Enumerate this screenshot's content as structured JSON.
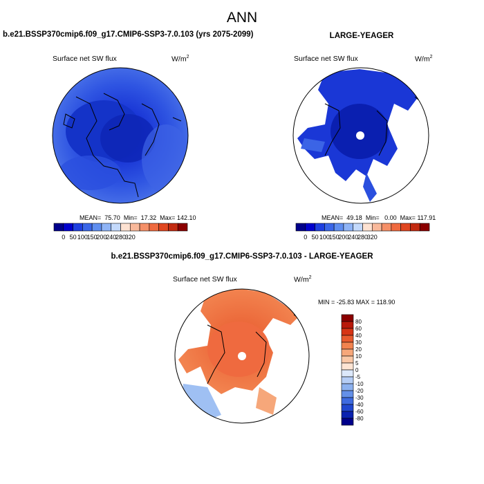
{
  "figure_title": "ANN",
  "chart_data": [
    {
      "type": "heatmap",
      "panel": "top-left",
      "title": "b.e21.BSSP370cmip6.f09_g17.CMIP6-SSP3-7.0.103 (yrs 2075-2099)",
      "variable_label": "Surface net SW flux",
      "units_label": "W/m",
      "units_power": "2",
      "stats": {
        "mean_label": "MEAN=",
        "mean": "75.70",
        "min_label": "Min=",
        "min": "17.32",
        "max_label": "Max=",
        "max": "142.10"
      },
      "colorbar": {
        "orientation": "horizontal",
        "ticks": [
          "0",
          "50",
          "100",
          "150",
          "200",
          "240",
          "280",
          "320"
        ],
        "colors": [
          "#00008b",
          "#0000cd",
          "#1e3fe0",
          "#3a66e8",
          "#5f8ef0",
          "#8fb4f6",
          "#c3d9fb",
          "#fde2d2",
          "#f9b99b",
          "#f59068",
          "#ef6a3f",
          "#e0461f",
          "#c22a10",
          "#8b0000"
        ]
      }
    },
    {
      "type": "heatmap",
      "panel": "top-right",
      "title": "LARGE-YEAGER",
      "variable_label": "Surface net SW flux",
      "units_label": "W/m",
      "units_power": "2",
      "stats": {
        "mean_label": "MEAN=",
        "mean": "49.18",
        "min_label": "Min=",
        "min": "0.00",
        "max_label": "Max=",
        "max": "117.91"
      },
      "colorbar": {
        "orientation": "horizontal",
        "ticks": [
          "0",
          "50",
          "100",
          "150",
          "200",
          "240",
          "280",
          "320"
        ],
        "colors": [
          "#00008b",
          "#0000cd",
          "#1e3fe0",
          "#3a66e8",
          "#5f8ef0",
          "#8fb4f6",
          "#c3d9fb",
          "#fde2d2",
          "#f9b99b",
          "#f59068",
          "#ef6a3f",
          "#e0461f",
          "#c22a10",
          "#8b0000"
        ]
      }
    },
    {
      "type": "heatmap",
      "panel": "bottom-difference",
      "title": "b.e21.BSSP370cmip6.f09_g17.CMIP6-SSP3-7.0.103 - LARGE-YEAGER",
      "variable_label": "Surface net SW flux",
      "units_label": "W/m",
      "units_power": "2",
      "stats_text": "MIN = -25.83 MAX = 118.90",
      "colorbar": {
        "orientation": "vertical",
        "ticks": [
          "80",
          "60",
          "40",
          "30",
          "20",
          "10",
          "5",
          "0",
          "-5",
          "-10",
          "-20",
          "-30",
          "-40",
          "-60",
          "-80"
        ],
        "colors": [
          "#8b0000",
          "#b8190a",
          "#d63415",
          "#e85a2e",
          "#f2834f",
          "#f6a77a",
          "#f9c7a6",
          "#fde4d3",
          "#dce8fa",
          "#b5cdf5",
          "#8cb1ef",
          "#6490e8",
          "#3e6be0",
          "#2047cf",
          "#0a22b0",
          "#00008b"
        ]
      }
    }
  ]
}
